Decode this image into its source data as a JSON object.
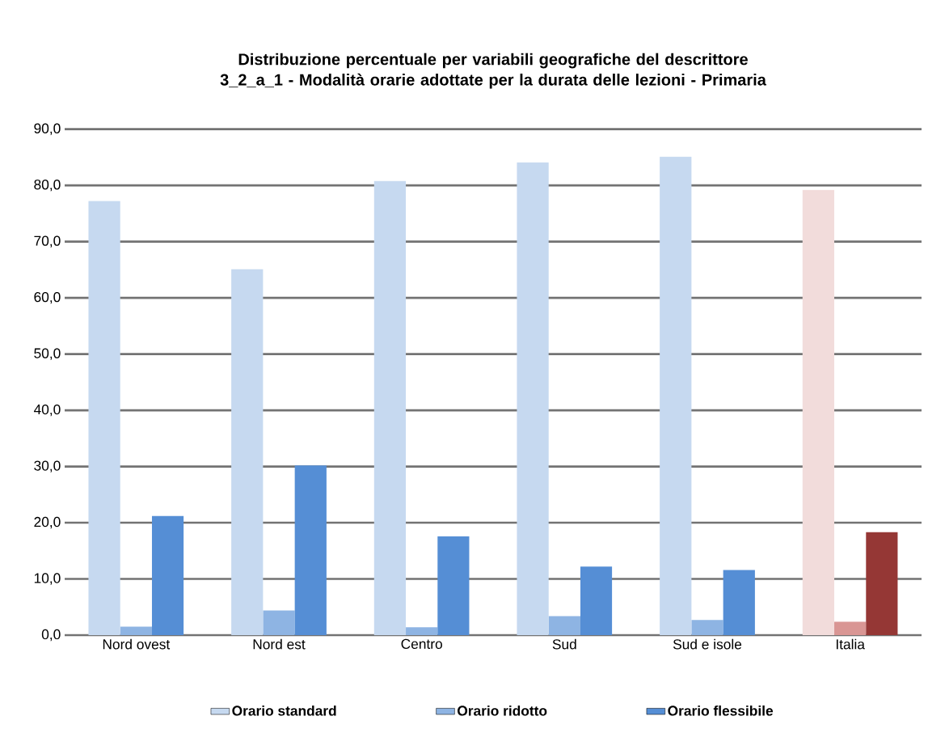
{
  "chart_data": {
    "type": "bar",
    "title": "Distribuzione percentuale per variabili geografiche del descrittore 3_2_a_1 - Modalità orarie adottate per la durata delle lezioni - Primaria",
    "categories": [
      "Nord ovest",
      "Nord est",
      "Centro",
      "Sud",
      "Sud e isole",
      "Italia"
    ],
    "series": [
      {
        "name": "Orario standard",
        "color": "#c6d9f0",
        "colors": [
          "#c6d9f0",
          "#c6d9f0",
          "#c6d9f0",
          "#c6d9f0",
          "#c6d9f0",
          "#f2dcdb"
        ],
        "values": [
          77.2,
          65.1,
          80.8,
          84.1,
          85.1,
          79.2
        ]
      },
      {
        "name": "Orario ridotto",
        "color": "#8eb4e3",
        "colors": [
          "#8eb4e3",
          "#8eb4e3",
          "#8eb4e3",
          "#8eb4e3",
          "#8eb4e3",
          "#d99694"
        ],
        "values": [
          1.5,
          4.4,
          1.4,
          3.4,
          2.7,
          2.4
        ]
      },
      {
        "name": "Orario flessibile",
        "color": "#558ed5",
        "colors": [
          "#558ed5",
          "#558ed5",
          "#558ed5",
          "#558ed5",
          "#558ed5",
          "#953735"
        ],
        "values": [
          21.2,
          30.2,
          17.6,
          12.2,
          11.6,
          18.3
        ]
      }
    ],
    "ylim": [
      0,
      90
    ],
    "yticks": [
      {
        "value": 0,
        "label": "0,0"
      },
      {
        "value": 10,
        "label": "10,0"
      },
      {
        "value": 20,
        "label": "20,0"
      },
      {
        "value": 30,
        "label": "30,0"
      },
      {
        "value": 40,
        "label": "40,0"
      },
      {
        "value": 50,
        "label": "50,0"
      },
      {
        "value": 60,
        "label": "60,0"
      },
      {
        "value": 70,
        "label": "70,0"
      },
      {
        "value": 80,
        "label": "80,0"
      },
      {
        "value": 90,
        "label": "90,0"
      }
    ],
    "grid": "y",
    "legend": "bottom"
  }
}
